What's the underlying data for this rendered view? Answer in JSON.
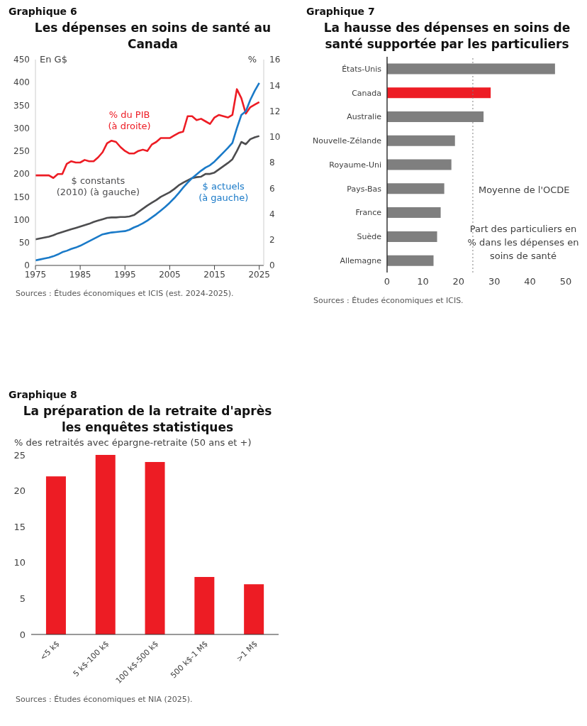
{
  "chart_data": [
    {
      "type": "line",
      "title": "Les dépenses en soins de santé au Canada",
      "ylabel": "En G$",
      "y2label": "%",
      "annotations": [
        "Graphique 6",
        "Sources : Études économiques et ICIS (est. 2024-2025)."
      ],
      "x": [
        1975,
        1976,
        1977,
        1978,
        1979,
        1980,
        1981,
        1982,
        1983,
        1984,
        1985,
        1986,
        1987,
        1988,
        1989,
        1990,
        1991,
        1992,
        1993,
        1994,
        1995,
        1996,
        1997,
        1998,
        1999,
        2000,
        2001,
        2002,
        2003,
        2004,
        2005,
        2006,
        2007,
        2008,
        2009,
        2010,
        2011,
        2012,
        2013,
        2014,
        2015,
        2016,
        2017,
        2018,
        2019,
        2020,
        2021,
        2022,
        2023,
        2024,
        2025
      ],
      "series": [
        {
          "name": "% du PIB (à droite)",
          "color": "#ed1c24",
          "axis": "y2",
          "values": [
            7.0,
            7.0,
            7.0,
            7.0,
            6.8,
            7.1,
            7.1,
            7.9,
            8.1,
            8.0,
            8.0,
            8.2,
            8.1,
            8.1,
            8.4,
            8.8,
            9.5,
            9.7,
            9.6,
            9.2,
            8.9,
            8.7,
            8.7,
            8.9,
            9.0,
            8.9,
            9.4,
            9.6,
            9.9,
            9.9,
            9.9,
            10.1,
            10.3,
            10.4,
            11.6,
            11.6,
            11.3,
            11.4,
            11.2,
            11.0,
            11.5,
            11.7,
            11.6,
            11.5,
            11.7,
            13.7,
            13.0,
            11.8,
            12.3,
            12.5,
            12.7
          ]
        },
        {
          "name": "$ constants (2010) (à gauche)",
          "color": "#4d4d4f",
          "values": [
            57,
            59,
            61,
            63,
            66,
            70,
            73,
            76,
            79,
            82,
            85,
            88,
            91,
            95,
            98,
            101,
            104,
            105,
            105,
            106,
            106,
            107,
            110,
            117,
            124,
            131,
            137,
            143,
            150,
            155,
            160,
            167,
            175,
            181,
            186,
            191,
            193,
            194,
            200,
            200,
            203,
            210,
            217,
            224,
            232,
            250,
            270,
            265,
            276,
            280,
            283
          ]
        },
        {
          "name": "$ actuels (à gauche)",
          "color": "#1a7ac8",
          "values": [
            11,
            13,
            15,
            17,
            20,
            24,
            29,
            32,
            36,
            39,
            43,
            48,
            53,
            58,
            63,
            68,
            70,
            72,
            73,
            74,
            75,
            78,
            83,
            87,
            92,
            98,
            105,
            112,
            120,
            128,
            137,
            147,
            158,
            170,
            181,
            191,
            199,
            207,
            214,
            219,
            227,
            237,
            247,
            257,
            268,
            300,
            329,
            337,
            362,
            382,
            399
          ]
        }
      ],
      "xlim": [
        1975,
        2026
      ],
      "xticks": [
        1975,
        1985,
        1995,
        2005,
        2015,
        2025
      ],
      "ylim": [
        0,
        450
      ],
      "yticks": [
        0,
        50,
        100,
        150,
        200,
        250,
        300,
        350,
        400,
        450
      ],
      "y2lim": [
        0,
        16
      ],
      "y2ticks": [
        0,
        2,
        4,
        6,
        8,
        10,
        12,
        14,
        16
      ]
    },
    {
      "type": "bar",
      "orientation": "horizontal",
      "title": "La hausse des dépenses en soins de santé supportée par les particuliers",
      "annotations": [
        "Graphique 7",
        "Part des particuliers en % dans les dépenses en soins de santé",
        "Sources : Études économiques et ICIS."
      ],
      "categories": [
        "États-Unis",
        "Canada",
        "Australie",
        "Nouvelle-Zélande",
        "Royaume-Uni",
        "Pays-Bas",
        "France",
        "Suède",
        "Allemagne"
      ],
      "values": [
        47,
        29,
        27,
        19,
        18,
        16,
        15,
        14,
        13
      ],
      "colors": [
        "#7f7f7f",
        "#ed1c24",
        "#7f7f7f",
        "#7f7f7f",
        "#7f7f7f",
        "#7f7f7f",
        "#7f7f7f",
        "#7f7f7f",
        "#7f7f7f"
      ],
      "xlim": [
        0,
        50
      ],
      "xticks": [
        0,
        10,
        20,
        30,
        40,
        50
      ],
      "ref_lines": [
        {
          "axis": "x",
          "value": 24,
          "label": "Moyenne de l'OCDE",
          "color": "#7f7f7f",
          "line_style": "dotted"
        }
      ]
    },
    {
      "type": "bar",
      "title": "La préparation de la retraite d'après les enquêtes statistiques",
      "subtitle": "% des retraités avec épargne-retraite (50 ans et +)",
      "annotations": [
        "Graphique 8",
        "Sources : Études économiques et NIA (2025)."
      ],
      "categories": [
        "<5 k$",
        "5 k$-100 k$",
        "100 k$-500 k$",
        "500 k$-1 M$",
        ">1 M$"
      ],
      "values": [
        22,
        25,
        24,
        8,
        7
      ],
      "color": "#ed1c24",
      "ylim": [
        0,
        25
      ],
      "yticks": [
        0,
        5,
        10,
        15,
        20,
        25
      ]
    }
  ]
}
